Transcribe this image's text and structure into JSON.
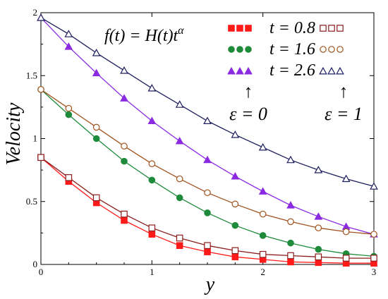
{
  "chart_data": {
    "type": "line",
    "title": "",
    "xlabel": "y",
    "ylabel": "Velocity",
    "xlim": [
      0,
      3
    ],
    "ylim": [
      0,
      2
    ],
    "xticks": [
      "0",
      "1",
      "2",
      "3"
    ],
    "yticks": [
      "0",
      "0.5",
      "1",
      "1.5",
      "2"
    ],
    "grid": false,
    "x": [
      0,
      0.25,
      0.5,
      0.75,
      1,
      1.25,
      1.5,
      1.75,
      2,
      2.25,
      2.5,
      2.75,
      3
    ],
    "series": [
      {
        "name": "t = 0.8",
        "group": "epsilon = 0",
        "marker": "filled-square",
        "color": "#ff1a1a",
        "values": [
          0.85,
          0.66,
          0.49,
          0.35,
          0.24,
          0.15,
          0.1,
          0.06,
          0.04,
          0.02,
          0.015,
          0.01,
          0.01
        ]
      },
      {
        "name": "t = 1.6",
        "group": "epsilon = 0",
        "marker": "filled-circle",
        "color": "#1e8b3a",
        "values": [
          1.39,
          1.19,
          1.0,
          0.82,
          0.67,
          0.53,
          0.41,
          0.31,
          0.23,
          0.17,
          0.12,
          0.085,
          0.065
        ]
      },
      {
        "name": "t = 2.6",
        "group": "epsilon = 0",
        "marker": "filled-triangle",
        "color": "#8a2be2",
        "values": [
          1.96,
          1.73,
          1.52,
          1.32,
          1.14,
          0.98,
          0.83,
          0.7,
          0.58,
          0.47,
          0.38,
          0.3,
          0.24
        ]
      },
      {
        "name": "t = 0.8",
        "group": "epsilon = 1",
        "marker": "open-square",
        "color": "#8b1c1c",
        "values": [
          0.85,
          0.69,
          0.53,
          0.4,
          0.29,
          0.21,
          0.15,
          0.11,
          0.08,
          0.07,
          0.06,
          0.05,
          0.05
        ]
      },
      {
        "name": "t = 1.6",
        "group": "epsilon = 1",
        "marker": "open-circle",
        "color": "#a0521e",
        "values": [
          1.39,
          1.24,
          1.09,
          0.94,
          0.8,
          0.68,
          0.57,
          0.48,
          0.4,
          0.34,
          0.29,
          0.26,
          0.24
        ]
      },
      {
        "name": "t = 2.6",
        "group": "epsilon = 1",
        "marker": "open-triangle",
        "color": "#1e1e5e",
        "values": [
          1.96,
          1.83,
          1.68,
          1.54,
          1.4,
          1.27,
          1.14,
          1.03,
          0.93,
          0.83,
          0.75,
          0.68,
          0.62
        ]
      }
    ],
    "legend": {
      "placement": "top-right",
      "formula": "f(t) = H(t)t^α",
      "formula_main": "f(t) = H(t)t",
      "formula_exp": "α",
      "labels": [
        "t = 0.8",
        "t = 1.6",
        "t = 2.6"
      ],
      "eps0_label": "ε = 0",
      "eps1_label": "ε = 1",
      "arrow_glyph": "↑"
    }
  }
}
